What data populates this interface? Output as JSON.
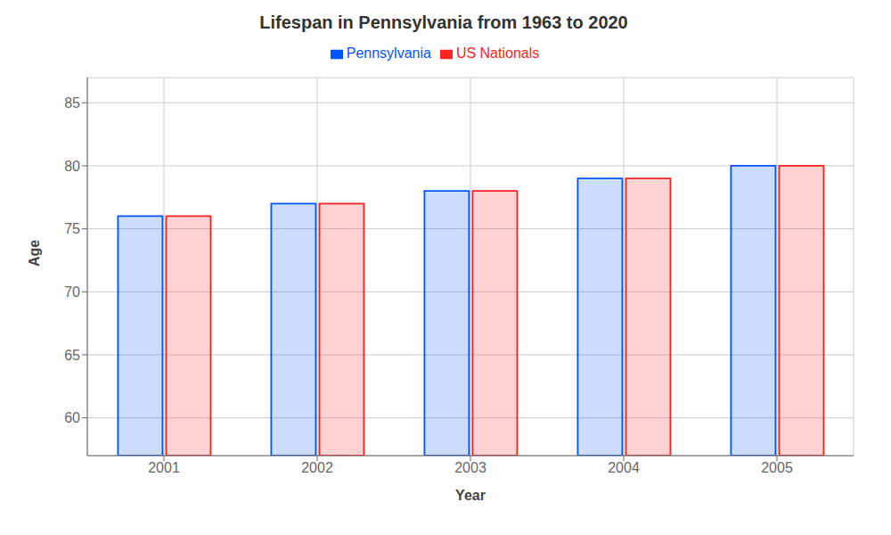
{
  "chart_data": {
    "type": "bar",
    "title": "Lifespan in Pennsylvania from 1963 to 2020",
    "xlabel": "Year",
    "ylabel": "Age",
    "categories": [
      "2001",
      "2002",
      "2003",
      "2004",
      "2005"
    ],
    "series": [
      {
        "name": "Pennsylvania",
        "color": "#0055ff",
        "values": [
          76,
          77,
          78,
          79,
          80
        ]
      },
      {
        "name": "US Nationals",
        "color": "#ff2222",
        "values": [
          76,
          77,
          78,
          79,
          80
        ]
      }
    ],
    "ylim": [
      57,
      87
    ],
    "yticks": [
      60,
      65,
      70,
      75,
      80,
      85
    ],
    "grid": true,
    "legend": "top"
  }
}
